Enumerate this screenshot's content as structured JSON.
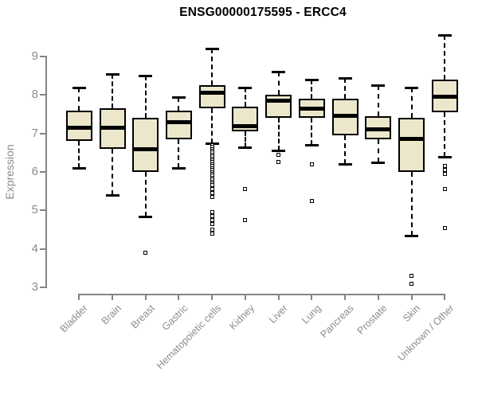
{
  "chart_data": {
    "type": "boxplot",
    "title": "ENSG00000175595 - ERCC4",
    "ylabel": "Expression",
    "xlabel": "",
    "ylim": [
      3,
      9.6
    ],
    "yticks": [
      3,
      4,
      5,
      6,
      7,
      8,
      9
    ],
    "grid": false,
    "legend": "none",
    "colors": {
      "box_fill": "#ECE7CB",
      "box_border": "#000000",
      "median": "#000000",
      "axis": "#848484",
      "axis_text": "#8c8c8c",
      "title_text": "#000000",
      "background": "#ffffff"
    },
    "categories": [
      "Bladder",
      "Brain",
      "Breast",
      "Gastric",
      "Hematopoietic cells",
      "Kidney",
      "Liver",
      "Lung",
      "Pancreas",
      "Prostate",
      "Skin",
      "Unknown / Other"
    ],
    "series": [
      {
        "category": "Bladder",
        "whisker_low": 6.1,
        "q1": 6.8,
        "median": 7.15,
        "q3": 7.6,
        "whisker_high": 8.2,
        "outliers": []
      },
      {
        "category": "Brain",
        "whisker_low": 5.4,
        "q1": 6.6,
        "median": 7.15,
        "q3": 7.65,
        "whisker_high": 8.55,
        "outliers": []
      },
      {
        "category": "Breast",
        "whisker_low": 4.85,
        "q1": 6.0,
        "median": 6.6,
        "q3": 7.4,
        "whisker_high": 8.5,
        "outliers": [
          3.9
        ]
      },
      {
        "category": "Gastric",
        "whisker_low": 6.1,
        "q1": 6.85,
        "median": 7.3,
        "q3": 7.6,
        "whisker_high": 7.95,
        "outliers": []
      },
      {
        "category": "Hematopoietic cells",
        "whisker_low": 6.75,
        "q1": 7.65,
        "median": 8.05,
        "q3": 8.25,
        "whisker_high": 9.2,
        "outliers": [
          6.7,
          6.65,
          6.6,
          6.55,
          6.5,
          6.45,
          6.4,
          6.35,
          6.3,
          6.25,
          6.2,
          6.15,
          6.1,
          6.05,
          6.0,
          5.95,
          5.9,
          5.85,
          5.8,
          5.75,
          5.7,
          5.65,
          5.55,
          5.45,
          5.35,
          4.95,
          4.85,
          4.75,
          4.65,
          4.5,
          4.4
        ]
      },
      {
        "category": "Kidney",
        "whisker_low": 6.65,
        "q1": 7.05,
        "median": 7.2,
        "q3": 7.7,
        "whisker_high": 8.2,
        "outliers": [
          5.55,
          4.75
        ]
      },
      {
        "category": "Liver",
        "whisker_low": 6.55,
        "q1": 7.4,
        "median": 7.85,
        "q3": 8.0,
        "whisker_high": 8.6,
        "outliers": [
          6.45,
          6.25
        ]
      },
      {
        "category": "Lung",
        "whisker_low": 6.7,
        "q1": 7.4,
        "median": 7.65,
        "q3": 7.9,
        "whisker_high": 8.4,
        "outliers": [
          6.2,
          5.25
        ]
      },
      {
        "category": "Pancreas",
        "whisker_low": 6.2,
        "q1": 6.95,
        "median": 7.45,
        "q3": 7.9,
        "whisker_high": 8.45,
        "outliers": []
      },
      {
        "category": "Prostate",
        "whisker_low": 6.25,
        "q1": 6.85,
        "median": 7.1,
        "q3": 7.45,
        "whisker_high": 8.25,
        "outliers": []
      },
      {
        "category": "Skin",
        "whisker_low": 4.35,
        "q1": 6.0,
        "median": 6.85,
        "q3": 7.4,
        "whisker_high": 8.2,
        "outliers": [
          3.3,
          3.1
        ]
      },
      {
        "category": "Unknown / Other",
        "whisker_low": 6.4,
        "q1": 7.55,
        "median": 7.95,
        "q3": 8.4,
        "whisker_high": 9.55,
        "outliers": [
          6.15,
          6.05,
          5.95,
          5.55,
          4.55
        ]
      }
    ]
  }
}
